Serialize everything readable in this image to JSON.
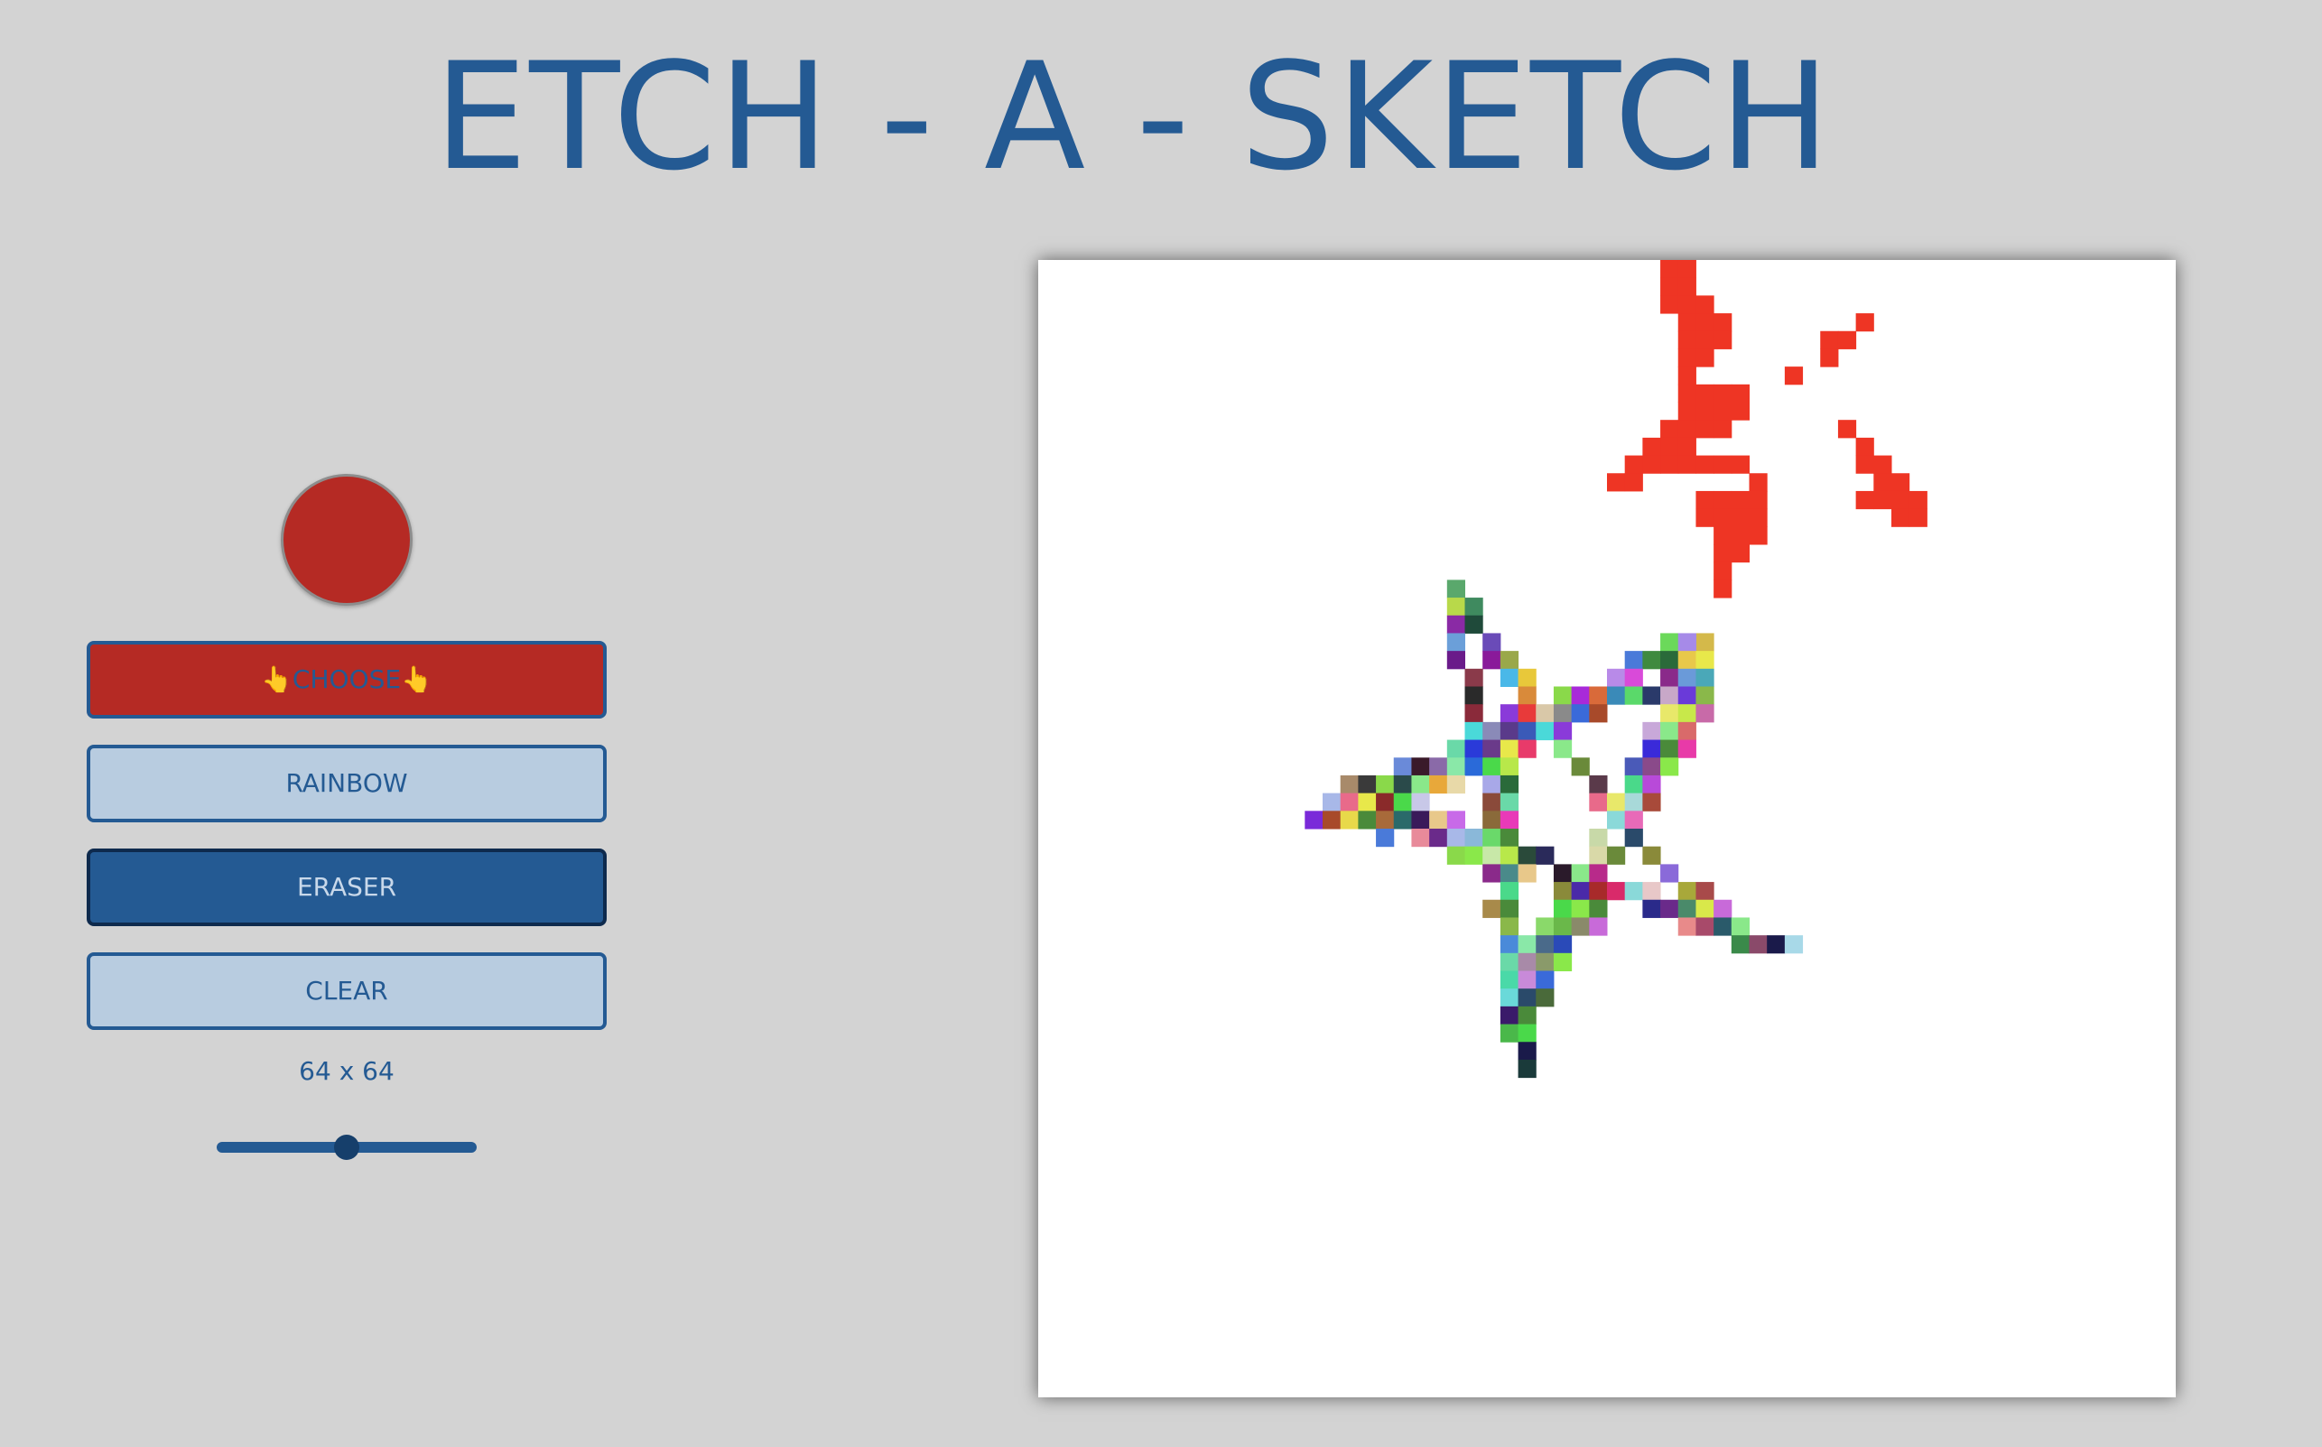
{
  "header": {
    "title": "ETCH - A - SKETCH"
  },
  "controls": {
    "current_color": "#b52a24",
    "choose_label": "👆CHOOSE👆",
    "rainbow_label": "RAINBOW",
    "eraser_label": "ERASER",
    "clear_label": "CLEAR",
    "active_mode": "eraser",
    "grid_size_label": "64 x 64",
    "grid_size": 64,
    "slider_fraction": 0.5
  },
  "colors": {
    "accent": "#245a93",
    "background": "#d3d3d3",
    "ink_red": "#ee3524"
  },
  "grid": {
    "size": 64,
    "red_cells": [
      [
        35,
        0
      ],
      [
        36,
        0
      ],
      [
        35,
        1
      ],
      [
        36,
        1
      ],
      [
        35,
        2
      ],
      [
        36,
        2
      ],
      [
        37,
        2
      ],
      [
        36,
        3
      ],
      [
        37,
        3
      ],
      [
        38,
        3
      ],
      [
        46,
        3
      ],
      [
        36,
        4
      ],
      [
        37,
        4
      ],
      [
        38,
        4
      ],
      [
        44,
        4
      ],
      [
        45,
        4
      ],
      [
        36,
        5
      ],
      [
        37,
        5
      ],
      [
        44,
        5
      ],
      [
        36,
        6
      ],
      [
        42,
        6
      ],
      [
        36,
        7
      ],
      [
        37,
        7
      ],
      [
        38,
        7
      ],
      [
        39,
        7
      ],
      [
        36,
        8
      ],
      [
        37,
        8
      ],
      [
        38,
        8
      ],
      [
        39,
        8
      ],
      [
        35,
        9
      ],
      [
        36,
        9
      ],
      [
        37,
        9
      ],
      [
        38,
        9
      ],
      [
        45,
        9
      ],
      [
        34,
        10
      ],
      [
        35,
        10
      ],
      [
        36,
        10
      ],
      [
        46,
        10
      ],
      [
        33,
        11
      ],
      [
        34,
        11
      ],
      [
        35,
        11
      ],
      [
        36,
        11
      ],
      [
        37,
        11
      ],
      [
        38,
        11
      ],
      [
        39,
        11
      ],
      [
        46,
        11
      ],
      [
        47,
        11
      ],
      [
        32,
        12
      ],
      [
        33,
        12
      ],
      [
        40,
        12
      ],
      [
        47,
        12
      ],
      [
        48,
        12
      ],
      [
        37,
        13
      ],
      [
        38,
        13
      ],
      [
        39,
        13
      ],
      [
        40,
        13
      ],
      [
        46,
        13
      ],
      [
        47,
        13
      ],
      [
        48,
        13
      ],
      [
        49,
        13
      ],
      [
        37,
        14
      ],
      [
        38,
        14
      ],
      [
        39,
        14
      ],
      [
        40,
        14
      ],
      [
        48,
        14
      ],
      [
        49,
        14
      ],
      [
        38,
        15
      ],
      [
        39,
        15
      ],
      [
        40,
        15
      ],
      [
        38,
        16
      ],
      [
        39,
        16
      ],
      [
        38,
        17
      ],
      [
        38,
        18
      ]
    ],
    "rainbow_cells": [
      [
        23,
        18,
        "#5aa86c"
      ],
      [
        23,
        19,
        "#b8d94a"
      ],
      [
        24,
        19,
        "#3f8a5f"
      ],
      [
        23,
        20,
        "#8a2aa5"
      ],
      [
        24,
        20,
        "#1f4a3a"
      ],
      [
        23,
        21,
        "#6b9fd9"
      ],
      [
        25,
        21,
        "#6a4bb8"
      ],
      [
        37,
        21,
        "#d4b94a"
      ],
      [
        35,
        21,
        "#6bd95a"
      ],
      [
        36,
        21,
        "#a68ae8"
      ],
      [
        23,
        22,
        "#6a1b8a"
      ],
      [
        25,
        22,
        "#8a1a9a"
      ],
      [
        26,
        22,
        "#9aa84a"
      ],
      [
        33,
        22,
        "#4a7ad9"
      ],
      [
        34,
        22,
        "#3f8a3f"
      ],
      [
        35,
        22,
        "#2a6a3a"
      ],
      [
        36,
        22,
        "#e8c84a"
      ],
      [
        37,
        22,
        "#e8e84a"
      ],
      [
        24,
        23,
        "#8a3a4a"
      ],
      [
        26,
        23,
        "#4ab8e8"
      ],
      [
        27,
        23,
        "#e8c83a"
      ],
      [
        32,
        23,
        "#b88ae8"
      ],
      [
        33,
        23,
        "#d94ad9"
      ],
      [
        35,
        23,
        "#8a2a8a"
      ],
      [
        36,
        23,
        "#6a9ad9"
      ],
      [
        37,
        23,
        "#4aa8b8"
      ],
      [
        24,
        24,
        "#2a2a2a"
      ],
      [
        27,
        24,
        "#d98a3a"
      ],
      [
        29,
        24,
        "#8ad94a"
      ],
      [
        30,
        24,
        "#a82ad9"
      ],
      [
        31,
        24,
        "#d96a3a"
      ],
      [
        32,
        24,
        "#3a8ab8"
      ],
      [
        33,
        24,
        "#5ad96a"
      ],
      [
        34,
        24,
        "#2a3a6a"
      ],
      [
        35,
        24,
        "#c8a8c8"
      ],
      [
        36,
        24,
        "#6a3ad9"
      ],
      [
        37,
        24,
        "#8ab84a"
      ],
      [
        24,
        25,
        "#8a2a3a"
      ],
      [
        26,
        25,
        "#8a3ad9"
      ],
      [
        27,
        25,
        "#e83a3a"
      ],
      [
        28,
        25,
        "#d9c8a8"
      ],
      [
        29,
        25,
        "#8a8a8a"
      ],
      [
        30,
        25,
        "#3a6ad9"
      ],
      [
        31,
        25,
        "#a84a2a"
      ],
      [
        35,
        25,
        "#e8e86a"
      ],
      [
        36,
        25,
        "#c8e84a"
      ],
      [
        37,
        25,
        "#c86aa8"
      ],
      [
        24,
        26,
        "#4ad9d9"
      ],
      [
        25,
        26,
        "#8a8ab8"
      ],
      [
        26,
        26,
        "#5a3a8a"
      ],
      [
        27,
        26,
        "#3a5ab8"
      ],
      [
        28,
        26,
        "#4ad9d9"
      ],
      [
        29,
        26,
        "#8a3ad9"
      ],
      [
        34,
        26,
        "#c8a8d9"
      ],
      [
        35,
        26,
        "#8ae88a"
      ],
      [
        36,
        26,
        "#d96a6a"
      ],
      [
        23,
        27,
        "#6ad9a8"
      ],
      [
        24,
        27,
        "#2a3ad9"
      ],
      [
        25,
        27,
        "#6a3a8a"
      ],
      [
        26,
        27,
        "#e8e84a"
      ],
      [
        27,
        27,
        "#e83a6a"
      ],
      [
        29,
        27,
        "#8ae88a"
      ],
      [
        34,
        27,
        "#3a2ad9"
      ],
      [
        35,
        27,
        "#4a8a3a"
      ],
      [
        36,
        27,
        "#e83aa8"
      ],
      [
        20,
        28,
        "#6a8ad9"
      ],
      [
        21,
        28,
        "#3a1a2a"
      ],
      [
        22,
        28,
        "#8a6aa8"
      ],
      [
        23,
        28,
        "#8ae8a8"
      ],
      [
        24,
        28,
        "#2a6ad9"
      ],
      [
        25,
        28,
        "#4ad94a"
      ],
      [
        26,
        28,
        "#b8e84a"
      ],
      [
        30,
        28,
        "#6a8a3a"
      ],
      [
        33,
        28,
        "#4a5ab8"
      ],
      [
        34,
        28,
        "#8a4a8a"
      ],
      [
        35,
        28,
        "#8ae84a"
      ],
      [
        17,
        29,
        "#a88a6a"
      ],
      [
        18,
        29,
        "#3a3a3a"
      ],
      [
        19,
        29,
        "#8ad94a"
      ],
      [
        20,
        29,
        "#2a4a4a"
      ],
      [
        21,
        29,
        "#8ae88a"
      ],
      [
        22,
        29,
        "#e8a83a"
      ],
      [
        23,
        29,
        "#e8d9a8"
      ],
      [
        25,
        29,
        "#a8a8e8"
      ],
      [
        26,
        29,
        "#2a6a3a"
      ],
      [
        31,
        29,
        "#5a3a4a"
      ],
      [
        33,
        29,
        "#4ad98a"
      ],
      [
        34,
        29,
        "#b84ad9"
      ],
      [
        16,
        30,
        "#a8b8e8"
      ],
      [
        17,
        30,
        "#e86a8a"
      ],
      [
        18,
        30,
        "#e8e84a"
      ],
      [
        19,
        30,
        "#8a2a2a"
      ],
      [
        20,
        30,
        "#4ad94a"
      ],
      [
        21,
        30,
        "#c8c8e8"
      ],
      [
        25,
        30,
        "#8a4a3a"
      ],
      [
        26,
        30,
        "#6ad9a8"
      ],
      [
        31,
        30,
        "#e86a8a"
      ],
      [
        32,
        30,
        "#e8e86a"
      ],
      [
        33,
        30,
        "#a8d9d9"
      ],
      [
        34,
        30,
        "#a84a3a"
      ],
      [
        15,
        31,
        "#7a2ad9"
      ],
      [
        16,
        31,
        "#a84a2a"
      ],
      [
        17,
        31,
        "#e8d94a"
      ],
      [
        18,
        31,
        "#4a8a3a"
      ],
      [
        19,
        31,
        "#a86a3a"
      ],
      [
        20,
        31,
        "#2a6a6a"
      ],
      [
        21,
        31,
        "#3a1a5a"
      ],
      [
        22,
        31,
        "#e8c88a"
      ],
      [
        23,
        31,
        "#c86ae8"
      ],
      [
        25,
        31,
        "#8a6a3a"
      ],
      [
        26,
        31,
        "#e83ab8"
      ],
      [
        32,
        31,
        "#8ad9d9"
      ],
      [
        33,
        31,
        "#e86ab8"
      ],
      [
        19,
        32,
        "#4a7ad9"
      ],
      [
        21,
        32,
        "#e88a9a"
      ],
      [
        22,
        32,
        "#6a2a8a"
      ],
      [
        23,
        32,
        "#a8b8e8"
      ],
      [
        24,
        32,
        "#8ab8d9"
      ],
      [
        25,
        32,
        "#6ad96a"
      ],
      [
        26,
        32,
        "#4a8a3a"
      ],
      [
        31,
        32,
        "#c8d9a8"
      ],
      [
        33,
        32,
        "#2a4a6a"
      ],
      [
        23,
        33,
        "#8ad94a"
      ],
      [
        24,
        33,
        "#8ae84a"
      ],
      [
        25,
        33,
        "#c8e8a8"
      ],
      [
        26,
        33,
        "#b8e84a"
      ],
      [
        27,
        33,
        "#2a4a3a"
      ],
      [
        28,
        33,
        "#2a2a5a"
      ],
      [
        31,
        33,
        "#d9d9a8"
      ],
      [
        32,
        33,
        "#6a8a3a"
      ],
      [
        34,
        33,
        "#8a8a3a"
      ],
      [
        25,
        34,
        "#8a2a8a"
      ],
      [
        26,
        34,
        "#4a8a8a"
      ],
      [
        27,
        34,
        "#e8c88a"
      ],
      [
        29,
        34,
        "#2a1a2a"
      ],
      [
        30,
        34,
        "#8ae88a"
      ],
      [
        31,
        34,
        "#b82a8a"
      ],
      [
        35,
        34,
        "#8a6ad9"
      ],
      [
        26,
        35,
        "#4ad98a"
      ],
      [
        29,
        35,
        "#8a8a3a"
      ],
      [
        30,
        35,
        "#4a2aa8"
      ],
      [
        31,
        35,
        "#a82a2a"
      ],
      [
        32,
        35,
        "#d92a6a"
      ],
      [
        33,
        35,
        "#8ad9d9"
      ],
      [
        34,
        35,
        "#e8c8c8"
      ],
      [
        36,
        35,
        "#a8a83a"
      ],
      [
        37,
        35,
        "#a84a4a"
      ],
      [
        25,
        36,
        "#a88a4a"
      ],
      [
        26,
        36,
        "#4a8a3a"
      ],
      [
        29,
        36,
        "#4ad94a"
      ],
      [
        30,
        36,
        "#8ae84a"
      ],
      [
        31,
        36,
        "#4a8a3a"
      ],
      [
        34,
        36,
        "#2a2a8a"
      ],
      [
        35,
        36,
        "#6a2a8a"
      ],
      [
        36,
        36,
        "#4a8a6a"
      ],
      [
        37,
        36,
        "#d9e84a"
      ],
      [
        38,
        36,
        "#c86ad9"
      ],
      [
        26,
        37,
        "#8ab84a"
      ],
      [
        28,
        37,
        "#8ad96a"
      ],
      [
        29,
        37,
        "#6ab84a"
      ],
      [
        30,
        37,
        "#8a8a6a"
      ],
      [
        31,
        37,
        "#c86ad9"
      ],
      [
        36,
        37,
        "#e88a8a"
      ],
      [
        37,
        37,
        "#a84a6a"
      ],
      [
        38,
        37,
        "#2a5a6a"
      ],
      [
        39,
        37,
        "#8ae88a"
      ],
      [
        26,
        38,
        "#4a8ad9"
      ],
      [
        27,
        38,
        "#8ae8a8"
      ],
      [
        28,
        38,
        "#4a6a8a"
      ],
      [
        29,
        38,
        "#2a4ab8"
      ],
      [
        39,
        38,
        "#3a8a4a"
      ],
      [
        40,
        38,
        "#8a4a6a"
      ],
      [
        41,
        38,
        "#1a1a4a"
      ],
      [
        42,
        38,
        "#a8d9e8"
      ],
      [
        26,
        39,
        "#6ad9a8"
      ],
      [
        27,
        39,
        "#a88aa8"
      ],
      [
        28,
        39,
        "#8a9a6a"
      ],
      [
        29,
        39,
        "#8ae84a"
      ],
      [
        26,
        40,
        "#4ad9a8"
      ],
      [
        27,
        40,
        "#c88ad9"
      ],
      [
        28,
        40,
        "#3a6ad9"
      ],
      [
        26,
        41,
        "#6ad9d9"
      ],
      [
        27,
        41,
        "#2a4a6a"
      ],
      [
        28,
        41,
        "#4a6a3a"
      ],
      [
        26,
        42,
        "#3a1a6a"
      ],
      [
        27,
        42,
        "#4a8a3a"
      ],
      [
        26,
        43,
        "#4ab84a"
      ],
      [
        27,
        43,
        "#4ad94a"
      ],
      [
        27,
        44,
        "#1a1a4a"
      ],
      [
        27,
        45,
        "#1a3a3a"
      ]
    ]
  }
}
